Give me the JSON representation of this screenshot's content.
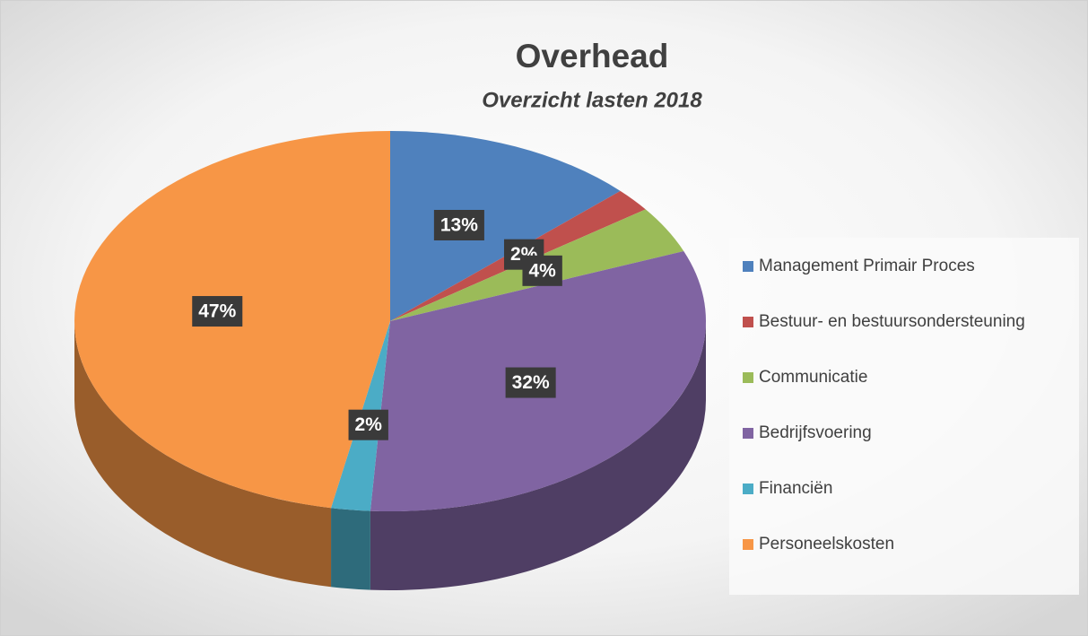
{
  "chart_data": {
    "type": "pie3d",
    "title": "Overhead",
    "subtitle": "Overzicht lasten 2018",
    "categories": [
      "Management Primair Proces",
      "Bestuur- en bestuursondersteuning",
      "Communicatie",
      "Bedrijfsvoering",
      "Financiën",
      "Personeelskosten"
    ],
    "values": [
      13,
      2,
      4,
      32,
      2,
      47
    ],
    "value_labels": [
      "13%",
      "2%",
      "4%",
      "32%",
      "2%",
      "47%"
    ],
    "colors": [
      "#4f81bd",
      "#c0504d",
      "#9bbb59",
      "#8064a2",
      "#4bacc6",
      "#f79646"
    ],
    "legend": "right"
  }
}
